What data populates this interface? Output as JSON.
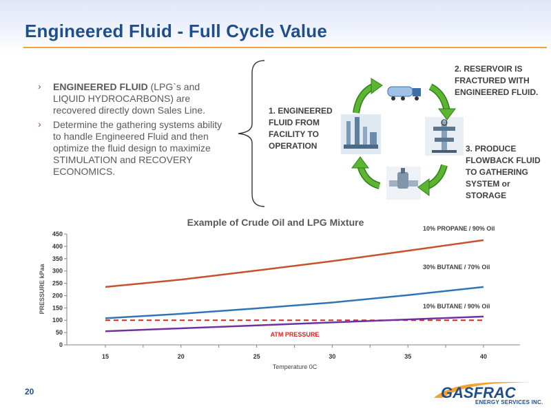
{
  "slide": {
    "title": "Engineered Fluid - Full Cycle Value",
    "page_number": "20"
  },
  "bullets": [
    {
      "bold": "ENGINEERED FLUID",
      "rest": " (LPG`s and LIQUID HYDROCARBONS)  are recovered directly down Sales Line."
    },
    {
      "bold": "",
      "rest": "Determine the gathering systems ability to handle Engineered Fluid and then optimize the fluid design to maximize STIMULATION and RECOVERY ECONOMICS."
    }
  ],
  "cycle": {
    "step1": "1. ENGINEERED FLUID FROM FACILITY TO OPERATION",
    "step2": "2. RESERVOIR IS FRACTURED WITH ENGINEERED FLUID.",
    "step3": "3. PRODUCE FLOWBACK FLUID TO GATHERING SYSTEM or STORAGE",
    "icons": [
      "facility-icon",
      "tanker-truck-icon",
      "wellhead-icon",
      "pipeline-valve-icon"
    ]
  },
  "chart_data": {
    "type": "line",
    "title": "Example of Crude Oil and LPG Mixture",
    "xlabel": "Temperature   0C",
    "ylabel": "PRESSURE kPaa",
    "xlim": [
      15,
      40
    ],
    "ylim": [
      0,
      450
    ],
    "xticks": [
      15,
      20,
      25,
      30,
      35,
      40
    ],
    "yticks": [
      0,
      50,
      100,
      150,
      200,
      250,
      300,
      350,
      400,
      450
    ],
    "x": [
      15,
      20,
      25,
      30,
      35,
      40
    ],
    "series": [
      {
        "name": "10% PROPANE / 90% Oil",
        "values": [
          235,
          265,
          302,
          340,
          382,
          425
        ],
        "color": "#c8502a"
      },
      {
        "name": "30% BUTANE / 70% Oil",
        "values": [
          108,
          126,
          148,
          172,
          202,
          235
        ],
        "color": "#2e75b6"
      },
      {
        "name": "10% BUTANE / 90% Oil",
        "values": [
          55,
          67,
          79,
          91,
          103,
          115
        ],
        "color": "#7030a0"
      }
    ],
    "reference": {
      "name": "ATM PRESSURE",
      "value": 100,
      "color": "#e0201c"
    },
    "grid": false
  },
  "logo": {
    "name": "GASFRAC",
    "tagline": "ENERGY SERVICES INC."
  },
  "colors": {
    "title": "#1f4e8c",
    "accent_rule": "#f0a533",
    "cycle_arrow": "#5cb531"
  }
}
